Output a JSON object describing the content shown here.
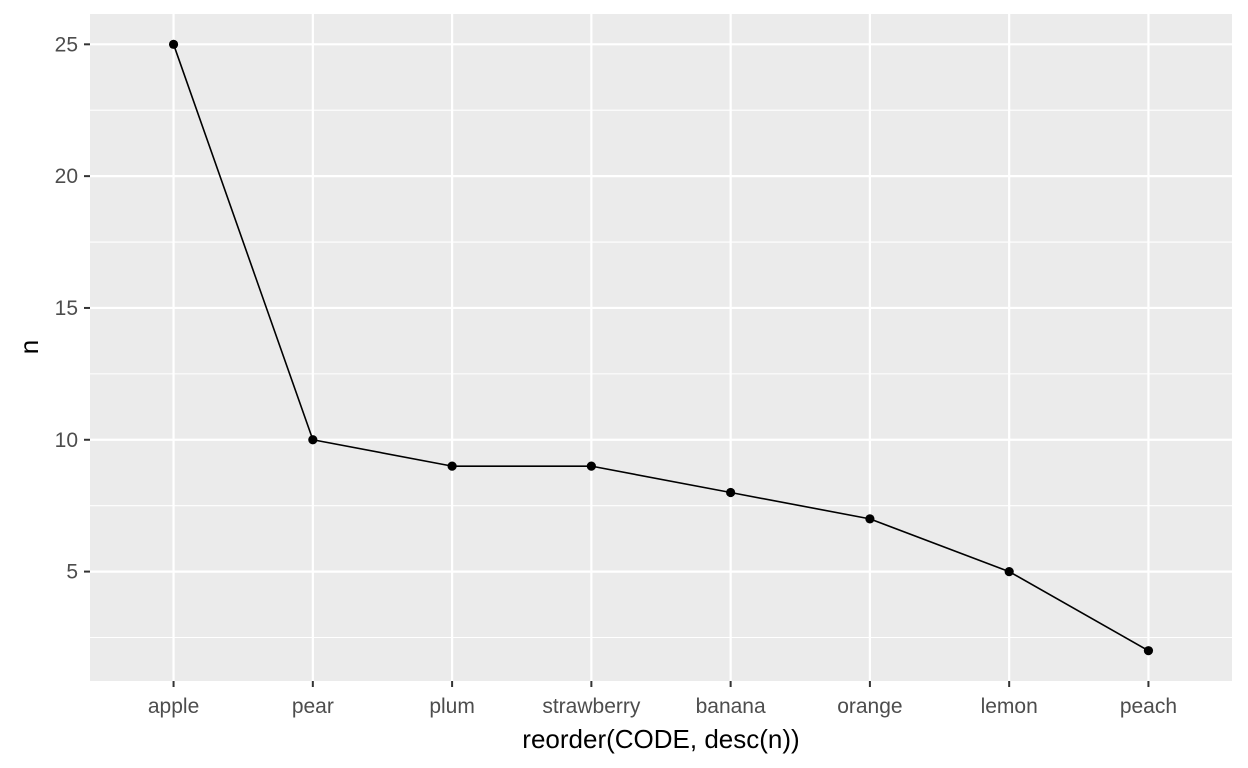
{
  "chart_data": {
    "type": "line",
    "categories": [
      "apple",
      "pear",
      "plum",
      "strawberry",
      "banana",
      "orange",
      "lemon",
      "peach"
    ],
    "values": [
      25,
      10,
      9,
      9,
      8,
      7,
      5,
      2
    ],
    "xlabel": "reorder(CODE, desc(n))",
    "ylabel": "n",
    "ylim": [
      0.85,
      26.15
    ],
    "yticks": [
      5,
      10,
      15,
      20,
      25
    ],
    "grid": true,
    "colors": {
      "panel": "#ebebeb",
      "grid": "#ffffff",
      "line": "#000000",
      "point": "#000000",
      "tick_text": "#4d4d4d",
      "tick_mark": "#333333"
    }
  }
}
